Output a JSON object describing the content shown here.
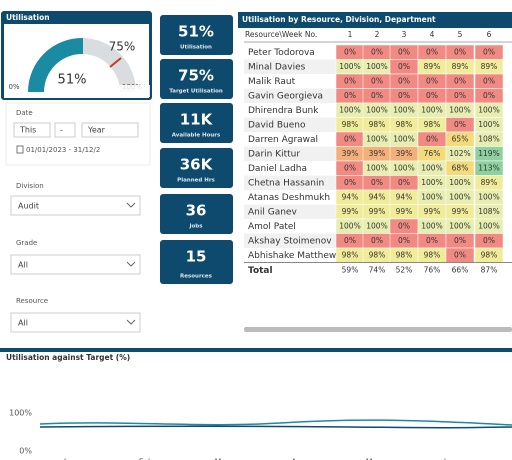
{
  "gauge": {
    "title": "Utilisation",
    "target": "75%",
    "value": "51%",
    "min": "0%",
    "max": "100%"
  },
  "date_slicer": {
    "label": "Date",
    "relative": "This",
    "amount": "-",
    "unit": "Year",
    "range": "01/01/2023 - 31/12/2"
  },
  "division": {
    "label": "Division",
    "value": "Audit"
  },
  "grade": {
    "label": "Grade",
    "value": "All"
  },
  "resource": {
    "label": "Resource",
    "value": "All"
  },
  "cards": [
    {
      "value": "51%",
      "label": "Utilisation"
    },
    {
      "value": "75%",
      "label": "Target Utilisation"
    },
    {
      "value": "11K",
      "label": "Available Hours"
    },
    {
      "value": "36K",
      "label": "Planned Hrs"
    },
    {
      "value": "36",
      "label": "Jobs"
    },
    {
      "value": "15",
      "label": "Resources"
    }
  ],
  "matrix": {
    "title": "Utilisation by Resource, Division, Department",
    "header": [
      "Resource\\Week No.",
      "1",
      "2",
      "3",
      "4",
      "5",
      "6"
    ],
    "rows": [
      [
        "Peter Todorova",
        "0%",
        "0%",
        "0%",
        "0%",
        "0%",
        "0%"
      ],
      [
        "Minal Davies",
        "100%",
        "100%",
        "0%",
        "89%",
        "89%",
        "89%"
      ],
      [
        "Malik Raut",
        "0%",
        "0%",
        "0%",
        "0%",
        "0%",
        "0%"
      ],
      [
        "Gavin Georgieva",
        "0%",
        "0%",
        "0%",
        "0%",
        "0%",
        "0%"
      ],
      [
        "Dhirendra Bunk",
        "100%",
        "100%",
        "100%",
        "100%",
        "100%",
        "100%"
      ],
      [
        "David Bueno",
        "98%",
        "98%",
        "98%",
        "98%",
        "0%",
        "100%"
      ],
      [
        "Darren Agrawal",
        "0%",
        "100%",
        "100%",
        "0%",
        "65%",
        "108%"
      ],
      [
        "Darin Kittur",
        "39%",
        "39%",
        "39%",
        "76%",
        "102%",
        "119%"
      ],
      [
        "Daniel Ladha",
        "0%",
        "100%",
        "100%",
        "100%",
        "68%",
        "113%"
      ],
      [
        "Chetna Hassanin",
        "0%",
        "0%",
        "0%",
        "100%",
        "100%",
        "89%"
      ],
      [
        "Atanas Deshmukh",
        "94%",
        "94%",
        "94%",
        "100%",
        "100%",
        "100%"
      ],
      [
        "Anil Ganev",
        "99%",
        "99%",
        "99%",
        "99%",
        "99%",
        "108%"
      ],
      [
        "Amol Patel",
        "100%",
        "100%",
        "0%",
        "100%",
        "100%",
        "100%"
      ],
      [
        "Akshay Stoimenov",
        "0%",
        "0%",
        "0%",
        "0%",
        "0%",
        "0%"
      ],
      [
        "Abhishake Matthews",
        "98%",
        "98%",
        "98%",
        "98%",
        "0%",
        "98%"
      ]
    ],
    "total": [
      "Total",
      "59%",
      "74%",
      "52%",
      "76%",
      "66%",
      "87%"
    ]
  },
  "target_chart": {
    "title": "Utilisation against Target (%)",
    "y_labels": [
      "100%",
      "0%"
    ],
    "months": [
      "Jan",
      "Feb",
      "Mar",
      "Apr",
      "May",
      "Jun"
    ]
  }
}
